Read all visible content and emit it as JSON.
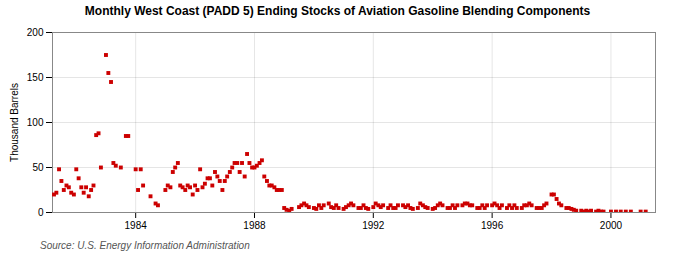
{
  "chart_data": {
    "type": "scatter",
    "title": "Monthly West Coast (PADD 5) Ending Stocks of Aviation Gasoline Blending Components",
    "ylabel": "Thousand Barrels",
    "source": "Source: U.S. Energy Information Administration",
    "color": "#cc0000",
    "marker": "square",
    "grid": true,
    "xlim": [
      1981.2,
      2001.5
    ],
    "xticks": [
      1984,
      1988,
      1992,
      1996,
      2000
    ],
    "ylim": [
      0,
      200
    ],
    "yticks": [
      0,
      50,
      100,
      150,
      200
    ],
    "x": [
      1981.25,
      1981.33,
      1981.42,
      1981.5,
      1981.58,
      1981.67,
      1981.75,
      1981.83,
      1981.92,
      1982.0,
      1982.08,
      1982.17,
      1982.25,
      1982.33,
      1982.42,
      1982.5,
      1982.58,
      1982.67,
      1982.75,
      1982.83,
      1983.0,
      1983.08,
      1983.17,
      1983.25,
      1983.33,
      1983.5,
      1983.67,
      1983.75,
      1984.0,
      1984.08,
      1984.17,
      1984.25,
      1984.5,
      1984.67,
      1984.75,
      1985.0,
      1985.08,
      1985.17,
      1985.25,
      1985.33,
      1985.42,
      1985.5,
      1985.58,
      1985.67,
      1985.75,
      1985.83,
      1985.92,
      1986.0,
      1986.08,
      1986.17,
      1986.25,
      1986.33,
      1986.42,
      1986.5,
      1986.58,
      1986.67,
      1986.75,
      1986.83,
      1986.92,
      1987.0,
      1987.08,
      1987.17,
      1987.25,
      1987.33,
      1987.42,
      1987.5,
      1987.58,
      1987.67,
      1987.75,
      1987.83,
      1987.92,
      1988.0,
      1988.08,
      1988.17,
      1988.25,
      1988.33,
      1988.42,
      1988.5,
      1988.58,
      1988.67,
      1988.75,
      1988.83,
      1988.92,
      1989.0,
      1989.08,
      1989.17,
      1989.25,
      1989.5,
      1989.58,
      1989.67,
      1989.75,
      1989.83,
      1990.0,
      1990.08,
      1990.17,
      1990.25,
      1990.33,
      1990.5,
      1990.58,
      1990.67,
      1990.75,
      1990.83,
      1991.0,
      1991.08,
      1991.17,
      1991.25,
      1991.33,
      1991.5,
      1991.58,
      1991.67,
      1991.75,
      1991.83,
      1992.0,
      1992.08,
      1992.17,
      1992.25,
      1992.33,
      1992.5,
      1992.58,
      1992.67,
      1992.75,
      1992.83,
      1993.0,
      1993.08,
      1993.17,
      1993.25,
      1993.33,
      1993.5,
      1993.58,
      1993.67,
      1993.75,
      1993.83,
      1994.0,
      1994.08,
      1994.17,
      1994.25,
      1994.33,
      1994.5,
      1994.58,
      1994.67,
      1994.75,
      1994.83,
      1995.0,
      1995.08,
      1995.17,
      1995.25,
      1995.33,
      1995.5,
      1995.58,
      1995.67,
      1995.75,
      1995.83,
      1996.0,
      1996.08,
      1996.17,
      1996.25,
      1996.33,
      1996.5,
      1996.58,
      1996.67,
      1996.75,
      1996.83,
      1997.0,
      1997.08,
      1997.17,
      1997.25,
      1997.33,
      1997.5,
      1997.58,
      1997.67,
      1997.75,
      1997.83,
      1998.0,
      1998.08,
      1998.17,
      1998.25,
      1998.33,
      1998.5,
      1998.58,
      1998.67,
      1998.75,
      1998.83,
      1999.0,
      1999.08,
      1999.17,
      1999.25,
      1999.33,
      1999.5,
      1999.58,
      1999.67,
      1999.75,
      2000.0,
      2000.17,
      2000.33,
      2000.5,
      2000.67,
      2001.0,
      2001.17
    ],
    "values": [
      20,
      22,
      48,
      35,
      25,
      30,
      28,
      22,
      20,
      48,
      38,
      28,
      22,
      28,
      18,
      25,
      30,
      86,
      88,
      50,
      175,
      155,
      145,
      55,
      52,
      50,
      85,
      85,
      48,
      25,
      48,
      30,
      18,
      10,
      8,
      25,
      30,
      28,
      45,
      50,
      55,
      30,
      28,
      25,
      30,
      28,
      20,
      30,
      25,
      48,
      28,
      32,
      38,
      38,
      30,
      45,
      40,
      35,
      25,
      35,
      40,
      45,
      50,
      55,
      55,
      45,
      55,
      40,
      65,
      55,
      50,
      50,
      52,
      55,
      58,
      40,
      35,
      30,
      30,
      28,
      25,
      25,
      25,
      5,
      3,
      2,
      4,
      6,
      8,
      10,
      8,
      6,
      5,
      4,
      8,
      5,
      8,
      10,
      6,
      5,
      8,
      5,
      4,
      6,
      8,
      10,
      8,
      5,
      5,
      8,
      5,
      4,
      6,
      10,
      8,
      6,
      8,
      5,
      8,
      5,
      5,
      8,
      8,
      6,
      8,
      5,
      4,
      5,
      10,
      8,
      6,
      5,
      4,
      5,
      8,
      10,
      8,
      5,
      5,
      8,
      5,
      8,
      8,
      10,
      10,
      8,
      8,
      5,
      5,
      8,
      5,
      8,
      8,
      10,
      8,
      5,
      8,
      5,
      8,
      5,
      8,
      5,
      5,
      8,
      8,
      10,
      8,
      5,
      5,
      5,
      8,
      10,
      20,
      20,
      15,
      10,
      8,
      5,
      5,
      4,
      3,
      2,
      2,
      1,
      2,
      1,
      2,
      1,
      2,
      1,
      1,
      1,
      1,
      1,
      1,
      1,
      1,
      1
    ]
  }
}
